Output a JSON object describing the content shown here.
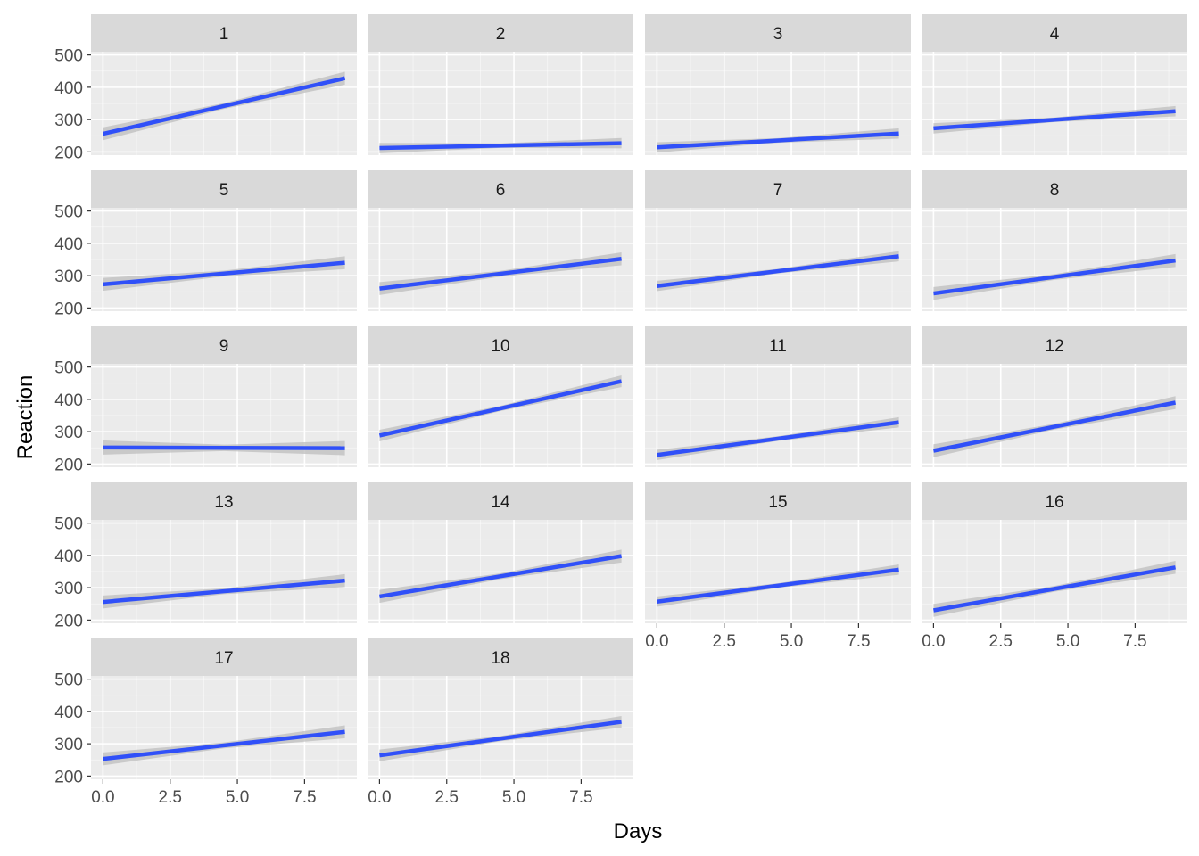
{
  "chart_data": {
    "type": "line",
    "facet_layout": {
      "rows": 5,
      "cols": 4
    },
    "xlabel": "Days",
    "ylabel": "Reaction",
    "xlim": [
      0,
      9
    ],
    "ylim": [
      190,
      510
    ],
    "x_ticks": [
      0,
      2.5,
      5,
      7.5
    ],
    "x_tick_labels": [
      "0.0",
      "2.5",
      "5.0",
      "7.5"
    ],
    "y_ticks": [
      200,
      300,
      400,
      500
    ],
    "y_tick_labels": [
      "200",
      "300",
      "400",
      "500"
    ],
    "colors": {
      "line": "#3050f8",
      "ribbon": "#bdbdbd",
      "panel": "#ebebeb",
      "strip": "#d9d9d9",
      "grid": "#ffffff"
    },
    "panels": [
      {
        "label": "1",
        "x": [
          0,
          9
        ],
        "y": [
          256,
          428
        ],
        "band": 20
      },
      {
        "label": "2",
        "x": [
          0,
          9
        ],
        "y": [
          212,
          227
        ],
        "band": 16
      },
      {
        "label": "3",
        "x": [
          0,
          9
        ],
        "y": [
          214,
          257
        ],
        "band": 16
      },
      {
        "label": "4",
        "x": [
          0,
          9
        ],
        "y": [
          273,
          326
        ],
        "band": 16
      },
      {
        "label": "5",
        "x": [
          0,
          9
        ],
        "y": [
          273,
          340
        ],
        "band": 20
      },
      {
        "label": "6",
        "x": [
          0,
          9
        ],
        "y": [
          260,
          352
        ],
        "band": 20
      },
      {
        "label": "7",
        "x": [
          0,
          9
        ],
        "y": [
          268,
          360
        ],
        "band": 16
      },
      {
        "label": "8",
        "x": [
          0,
          9
        ],
        "y": [
          245,
          347
        ],
        "band": 20
      },
      {
        "label": "9",
        "x": [
          0,
          9
        ],
        "y": [
          251,
          249
        ],
        "band": 22
      },
      {
        "label": "10",
        "x": [
          0,
          9
        ],
        "y": [
          288,
          456
        ],
        "band": 18
      },
      {
        "label": "11",
        "x": [
          0,
          9
        ],
        "y": [
          228,
          329
        ],
        "band": 16
      },
      {
        "label": "12",
        "x": [
          0,
          9
        ],
        "y": [
          241,
          390
        ],
        "band": 20
      },
      {
        "label": "13",
        "x": [
          0,
          9
        ],
        "y": [
          256,
          322
        ],
        "band": 20
      },
      {
        "label": "14",
        "x": [
          0,
          9
        ],
        "y": [
          273,
          398
        ],
        "band": 20
      },
      {
        "label": "15",
        "x": [
          0,
          9
        ],
        "y": [
          257,
          356
        ],
        "band": 16
      },
      {
        "label": "16",
        "x": [
          0,
          9
        ],
        "y": [
          230,
          363
        ],
        "band": 20
      },
      {
        "label": "17",
        "x": [
          0,
          9
        ],
        "y": [
          253,
          337
        ],
        "band": 20
      },
      {
        "label": "18",
        "x": [
          0,
          9
        ],
        "y": [
          264,
          368
        ],
        "band": 18
      }
    ]
  }
}
